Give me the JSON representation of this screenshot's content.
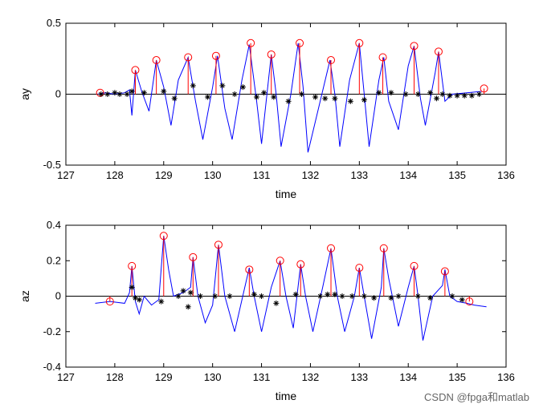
{
  "watermark": "CSDN @fpga和matlab",
  "chart_data": [
    {
      "type": "line",
      "ylabel": "ay",
      "xlabel": "time",
      "xlim": [
        127,
        136
      ],
      "ylim": [
        -0.5,
        0.5
      ],
      "xticks": [
        127,
        128,
        129,
        130,
        131,
        132,
        133,
        134,
        135,
        136
      ],
      "yticks": [
        -0.5,
        0,
        0.5
      ],
      "ytick_labels": [
        "-0.5",
        "0",
        "0.5"
      ],
      "colors": {
        "signal": "#0000ff",
        "peak": "#ff0000",
        "mark": "#000000"
      },
      "series": [
        {
          "name": "signal",
          "points": [
            [
              127.65,
              0
            ],
            [
              127.8,
              0.01
            ],
            [
              128.0,
              0
            ],
            [
              128.2,
              0.01
            ],
            [
              128.3,
              0.03
            ],
            [
              128.35,
              -0.15
            ],
            [
              128.42,
              0.17
            ],
            [
              128.55,
              0.02
            ],
            [
              128.7,
              -0.12
            ],
            [
              128.85,
              0.24
            ],
            [
              129.0,
              0.05
            ],
            [
              129.15,
              -0.22
            ],
            [
              129.3,
              0.1
            ],
            [
              129.5,
              0.26
            ],
            [
              129.65,
              -0.05
            ],
            [
              129.8,
              -0.32
            ],
            [
              130.0,
              0.05
            ],
            [
              130.1,
              0.27
            ],
            [
              130.25,
              -0.1
            ],
            [
              130.4,
              -0.32
            ],
            [
              130.6,
              0.1
            ],
            [
              130.75,
              0.35
            ],
            [
              130.9,
              -0.05
            ],
            [
              131.0,
              -0.35
            ],
            [
              131.2,
              0.28
            ],
            [
              131.3,
              0.0
            ],
            [
              131.4,
              -0.37
            ],
            [
              131.6,
              0.0
            ],
            [
              131.75,
              0.36
            ],
            [
              131.85,
              0.05
            ],
            [
              131.95,
              -0.41
            ],
            [
              132.2,
              -0.05
            ],
            [
              132.4,
              0.24
            ],
            [
              132.5,
              0.0
            ],
            [
              132.6,
              -0.37
            ],
            [
              132.8,
              0.1
            ],
            [
              133.0,
              0.36
            ],
            [
              133.1,
              0.0
            ],
            [
              133.2,
              -0.37
            ],
            [
              133.4,
              0.1
            ],
            [
              133.5,
              0.26
            ],
            [
              133.6,
              -0.05
            ],
            [
              133.8,
              -0.25
            ],
            [
              134.0,
              0.2
            ],
            [
              134.12,
              0.34
            ],
            [
              134.25,
              -0.03
            ],
            [
              134.35,
              -0.22
            ],
            [
              134.55,
              0.15
            ],
            [
              134.62,
              0.3
            ],
            [
              134.75,
              -0.05
            ],
            [
              134.9,
              0.0
            ],
            [
              135.2,
              0.01
            ],
            [
              135.5,
              0.02
            ]
          ]
        },
        {
          "name": "peaks",
          "points": [
            [
              127.7,
              0.01
            ],
            [
              128.42,
              0.17
            ],
            [
              128.85,
              0.24
            ],
            [
              129.5,
              0.26
            ],
            [
              130.07,
              0.27
            ],
            [
              130.78,
              0.36
            ],
            [
              131.2,
              0.28
            ],
            [
              131.78,
              0.36
            ],
            [
              132.42,
              0.24
            ],
            [
              133.0,
              0.36
            ],
            [
              133.48,
              0.26
            ],
            [
              134.12,
              0.34
            ],
            [
              134.62,
              0.3
            ],
            [
              135.55,
              0.04
            ]
          ]
        },
        {
          "name": "marks",
          "points": [
            [
              127.72,
              0
            ],
            [
              127.85,
              0
            ],
            [
              128.0,
              0.01
            ],
            [
              128.1,
              0
            ],
            [
              128.25,
              0
            ],
            [
              128.35,
              0.02
            ],
            [
              128.6,
              0.01
            ],
            [
              129.0,
              0.02
            ],
            [
              129.22,
              -0.03
            ],
            [
              129.6,
              0.06
            ],
            [
              129.9,
              -0.02
            ],
            [
              130.2,
              0.06
            ],
            [
              130.45,
              0
            ],
            [
              130.62,
              0.05
            ],
            [
              130.9,
              -0.02
            ],
            [
              131.05,
              0.01
            ],
            [
              131.25,
              -0.02
            ],
            [
              131.55,
              -0.05
            ],
            [
              131.82,
              0
            ],
            [
              132.1,
              -0.02
            ],
            [
              132.3,
              -0.03
            ],
            [
              132.5,
              -0.03
            ],
            [
              132.82,
              -0.05
            ],
            [
              133.1,
              -0.04
            ],
            [
              133.4,
              0.01
            ],
            [
              133.65,
              0.01
            ],
            [
              133.95,
              0
            ],
            [
              134.2,
              0
            ],
            [
              134.45,
              0.01
            ],
            [
              134.58,
              -0.03
            ],
            [
              134.7,
              0
            ],
            [
              134.85,
              -0.01
            ],
            [
              135.0,
              -0.01
            ],
            [
              135.15,
              -0.01
            ],
            [
              135.3,
              -0.01
            ],
            [
              135.45,
              0
            ]
          ]
        }
      ]
    },
    {
      "type": "line",
      "ylabel": "az",
      "xlabel": "time",
      "xlim": [
        127,
        136
      ],
      "ylim": [
        -0.4,
        0.4
      ],
      "xticks": [
        127,
        128,
        129,
        130,
        131,
        132,
        133,
        134,
        135,
        136
      ],
      "yticks": [
        -0.4,
        -0.2,
        0,
        0.2,
        0.4
      ],
      "ytick_labels": [
        "-0.4",
        "-0.2",
        "0",
        "0.2",
        "0.4"
      ],
      "colors": {
        "signal": "#0000ff",
        "peak": "#ff0000",
        "mark": "#000000"
      },
      "series": [
        {
          "name": "signal",
          "points": [
            [
              127.6,
              -0.04
            ],
            [
              127.9,
              -0.03
            ],
            [
              128.2,
              -0.04
            ],
            [
              128.3,
              0.02
            ],
            [
              128.35,
              0.17
            ],
            [
              128.42,
              -0.03
            ],
            [
              128.5,
              -0.1
            ],
            [
              128.6,
              0.0
            ],
            [
              128.75,
              -0.05
            ],
            [
              128.9,
              -0.02
            ],
            [
              129.0,
              0.34
            ],
            [
              129.1,
              0.15
            ],
            [
              129.2,
              0.0
            ],
            [
              129.4,
              0.02
            ],
            [
              129.55,
              0.05
            ],
            [
              129.6,
              0.22
            ],
            [
              129.7,
              0.0
            ],
            [
              129.85,
              -0.15
            ],
            [
              130.0,
              -0.05
            ],
            [
              130.12,
              0.29
            ],
            [
              130.25,
              0.0
            ],
            [
              130.45,
              -0.2
            ],
            [
              130.6,
              -0.02
            ],
            [
              130.75,
              0.16
            ],
            [
              130.85,
              0.0
            ],
            [
              131.0,
              -0.2
            ],
            [
              131.2,
              0.05
            ],
            [
              131.38,
              0.2
            ],
            [
              131.5,
              0.0
            ],
            [
              131.65,
              -0.18
            ],
            [
              131.8,
              0.18
            ],
            [
              131.9,
              0.0
            ],
            [
              132.05,
              -0.2
            ],
            [
              132.25,
              0.05
            ],
            [
              132.42,
              0.27
            ],
            [
              132.55,
              0.0
            ],
            [
              132.7,
              -0.2
            ],
            [
              132.9,
              0.0
            ],
            [
              133.0,
              0.16
            ],
            [
              133.1,
              0.0
            ],
            [
              133.25,
              -0.24
            ],
            [
              133.45,
              0.05
            ],
            [
              133.5,
              0.27
            ],
            [
              133.6,
              0.1
            ],
            [
              133.8,
              -0.17
            ],
            [
              134.0,
              0.05
            ],
            [
              134.12,
              0.17
            ],
            [
              134.2,
              0.0
            ],
            [
              134.3,
              -0.25
            ],
            [
              134.5,
              0.0
            ],
            [
              134.7,
              0.06
            ],
            [
              134.75,
              0.15
            ],
            [
              134.85,
              0.0
            ],
            [
              135.0,
              -0.03
            ],
            [
              135.2,
              -0.04
            ],
            [
              135.35,
              -0.05
            ],
            [
              135.6,
              -0.06
            ]
          ]
        },
        {
          "name": "peaks",
          "points": [
            [
              127.9,
              -0.03
            ],
            [
              128.35,
              0.17
            ],
            [
              129.0,
              0.34
            ],
            [
              129.6,
              0.22
            ],
            [
              130.12,
              0.29
            ],
            [
              130.75,
              0.15
            ],
            [
              131.38,
              0.2
            ],
            [
              131.8,
              0.18
            ],
            [
              132.42,
              0.27
            ],
            [
              133.0,
              0.16
            ],
            [
              133.5,
              0.27
            ],
            [
              134.12,
              0.17
            ],
            [
              134.75,
              0.14
            ],
            [
              135.25,
              -0.03
            ]
          ]
        },
        {
          "name": "marks",
          "points": [
            [
              128.35,
              0.05
            ],
            [
              128.42,
              -0.01
            ],
            [
              128.5,
              -0.02
            ],
            [
              128.95,
              -0.03
            ],
            [
              129.3,
              0.0
            ],
            [
              129.4,
              0.03
            ],
            [
              129.5,
              -0.06
            ],
            [
              129.55,
              0.02
            ],
            [
              129.75,
              0.0
            ],
            [
              130.05,
              0.0
            ],
            [
              130.35,
              0.0
            ],
            [
              130.85,
              0.01
            ],
            [
              131.0,
              0.0
            ],
            [
              131.3,
              -0.04
            ],
            [
              131.7,
              0.01
            ],
            [
              132.2,
              0.0
            ],
            [
              132.35,
              0.01
            ],
            [
              132.5,
              0.01
            ],
            [
              132.65,
              0.0
            ],
            [
              132.85,
              0.0
            ],
            [
              133.1,
              0.0
            ],
            [
              133.3,
              -0.01
            ],
            [
              133.65,
              -0.01
            ],
            [
              133.8,
              0.0
            ],
            [
              134.2,
              0.0
            ],
            [
              134.45,
              -0.01
            ],
            [
              134.9,
              0.0
            ],
            [
              135.1,
              -0.02
            ]
          ]
        }
      ]
    }
  ]
}
